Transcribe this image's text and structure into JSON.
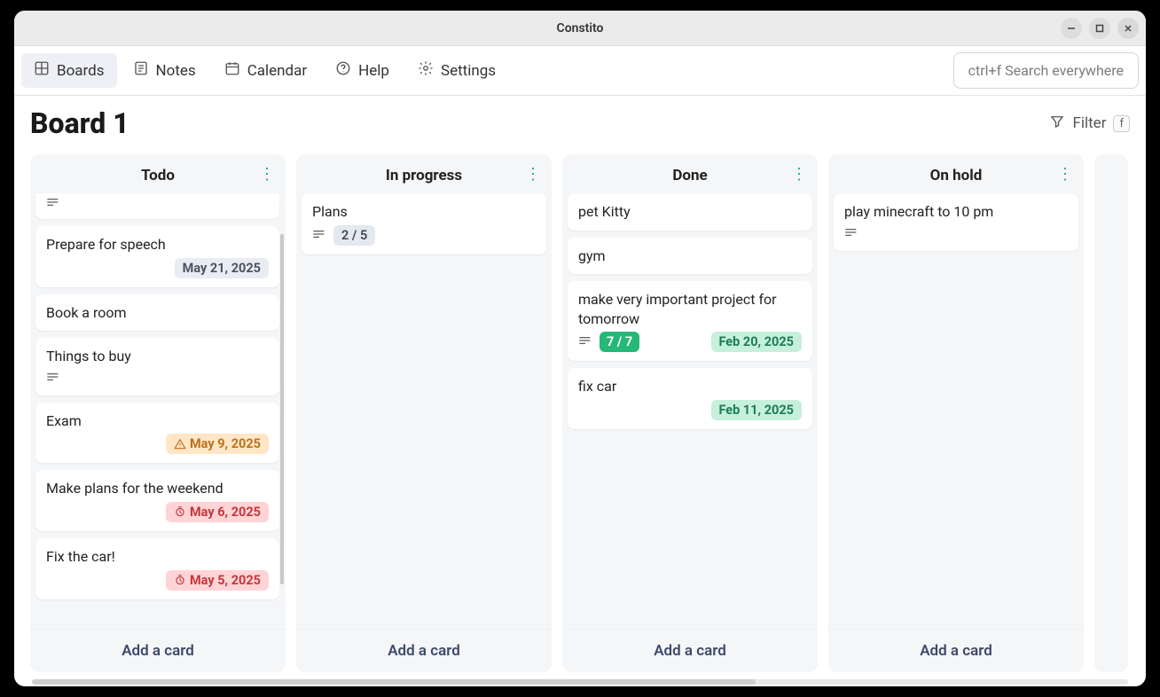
{
  "window": {
    "title": "Constito"
  },
  "nav": {
    "boards": "Boards",
    "notes": "Notes",
    "calendar": "Calendar",
    "help": "Help",
    "settings": "Settings",
    "search_placeholder": "ctrl+f Search everywhere"
  },
  "board": {
    "title": "Board 1",
    "filter_label": "Filter",
    "filter_key": "f"
  },
  "columns": [
    {
      "title": "Todo",
      "add_label": "Add a card",
      "has_scroll": true,
      "cards": [
        {
          "partial_top": true,
          "has_description": true
        },
        {
          "title": "Prepare for speech",
          "date": {
            "text": "May 21, 2025",
            "style": "neutral"
          }
        },
        {
          "title": "Book a room"
        },
        {
          "title": "Things to buy",
          "has_description": true
        },
        {
          "title": "Exam",
          "date": {
            "text": "May 9, 2025",
            "style": "orange",
            "icon": "warn"
          }
        },
        {
          "title": "Make plans for the weekend",
          "date": {
            "text": "May 6, 2025",
            "style": "red",
            "icon": "clock"
          }
        },
        {
          "title": "Fix the car!",
          "date": {
            "text": "May 5, 2025",
            "style": "red",
            "icon": "clock"
          }
        }
      ]
    },
    {
      "title": "In progress",
      "add_label": "Add a card",
      "cards": [
        {
          "title": "Plans",
          "has_description": true,
          "progress": "2 / 5"
        }
      ]
    },
    {
      "title": "Done",
      "add_label": "Add a card",
      "cards": [
        {
          "title": "pet Kitty"
        },
        {
          "title": "gym"
        },
        {
          "title": "make very important project for tomorrow",
          "has_description": true,
          "progress_done": "7 / 7",
          "date": {
            "text": "Feb 20, 2025",
            "style": "green"
          }
        },
        {
          "title": "fix car",
          "date": {
            "text": "Feb 11, 2025",
            "style": "green"
          }
        }
      ]
    },
    {
      "title": "On hold",
      "add_label": "Add a card",
      "cards": [
        {
          "title": "play minecraft to 10 pm",
          "has_description": true
        }
      ]
    }
  ],
  "colors": {
    "accent_green": "#1fae7b",
    "badge_neutral_bg": "#e9ecf2",
    "badge_green_bg": "#c6f0dc",
    "badge_orange_bg": "#ffe6c6",
    "badge_red_bg": "#ffd4d6"
  }
}
